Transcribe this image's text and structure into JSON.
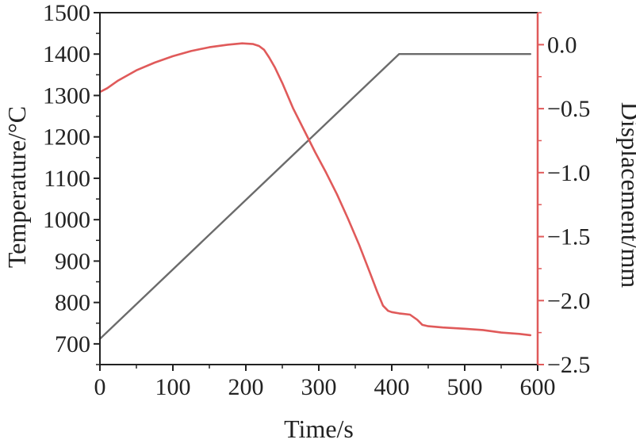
{
  "chart_data": {
    "type": "line",
    "title": "",
    "xlabel": "Time/s",
    "ylabel_left": "Temperature/°C",
    "ylabel_right": "Displacement/mm",
    "xlim": [
      0,
      600
    ],
    "ylim_left": [
      650,
      1500
    ],
    "ylim_right": [
      -2.5,
      0.25
    ],
    "x_ticks": [
      0,
      100,
      200,
      300,
      400,
      500,
      600
    ],
    "y_left_ticks": [
      700,
      800,
      900,
      1000,
      1100,
      1200,
      1300,
      1400,
      1500
    ],
    "y_right_ticks": [
      0.0,
      -0.5,
      -1.0,
      -1.5,
      -2.0,
      -2.5
    ],
    "y_right_tick_labels": [
      "0.0",
      "−0.5",
      "−1.0",
      "−1.5",
      "−2.0",
      "−2.5"
    ],
    "grid": false,
    "legend": "none",
    "colors": {
      "axis": "#222222",
      "temperature": "#6b6b6b",
      "displacement": "#e05a5a"
    },
    "series": [
      {
        "axis": "left",
        "color": "#6b6b6b",
        "x": [
          0,
          410,
          590
        ],
        "y": [
          712,
          1400,
          1400
        ]
      },
      {
        "axis": "right",
        "color": "#e05a5a",
        "x": [
          0,
          10,
          25,
          50,
          75,
          100,
          125,
          150,
          175,
          195,
          210,
          218,
          225,
          232,
          240,
          250,
          265,
          280,
          295,
          310,
          325,
          340,
          355,
          370,
          380,
          388,
          395,
          400,
          410,
          425,
          435,
          442,
          450,
          470,
          500,
          525,
          550,
          575,
          590
        ],
        "y": [
          -0.37,
          -0.34,
          -0.28,
          -0.2,
          -0.14,
          -0.09,
          -0.05,
          -0.02,
          0.0,
          0.01,
          0.005,
          -0.01,
          -0.04,
          -0.1,
          -0.18,
          -0.3,
          -0.5,
          -0.67,
          -0.84,
          -1.0,
          -1.17,
          -1.36,
          -1.56,
          -1.78,
          -1.93,
          -2.04,
          -2.08,
          -2.09,
          -2.1,
          -2.11,
          -2.15,
          -2.19,
          -2.2,
          -2.21,
          -2.22,
          -2.23,
          -2.25,
          -2.26,
          -2.27
        ]
      }
    ]
  }
}
